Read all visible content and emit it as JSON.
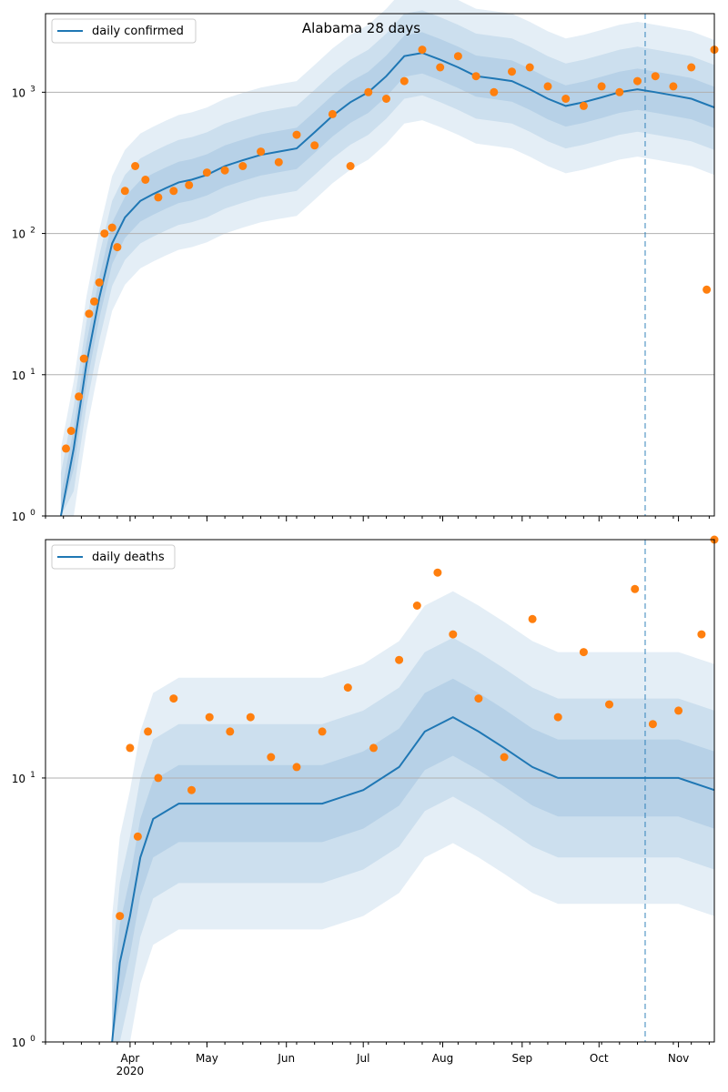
{
  "chart_data": [
    {
      "type": "line",
      "title": "Alabama 28 days",
      "xlabel": "",
      "ylabel": "",
      "yscale": "log",
      "ylim": [
        1,
        3600
      ],
      "xlim": [
        "2020-02-28",
        "2020-11-15"
      ],
      "grid": "y",
      "legend_placement": "top-left",
      "series": [
        {
          "name": "daily confirmed",
          "kind": "line",
          "color": "#1f77b4",
          "x": [
            "2020-03-05",
            "2020-03-10",
            "2020-03-15",
            "2020-03-20",
            "2020-03-25",
            "2020-03-30",
            "2020-04-05",
            "2020-04-10",
            "2020-04-15",
            "2020-04-20",
            "2020-04-25",
            "2020-05-01",
            "2020-05-08",
            "2020-05-15",
            "2020-05-22",
            "2020-05-29",
            "2020-06-05",
            "2020-06-12",
            "2020-06-19",
            "2020-06-26",
            "2020-07-03",
            "2020-07-10",
            "2020-07-17",
            "2020-07-24",
            "2020-07-31",
            "2020-08-07",
            "2020-08-14",
            "2020-08-21",
            "2020-08-28",
            "2020-09-04",
            "2020-09-11",
            "2020-09-18",
            "2020-09-25",
            "2020-10-02",
            "2020-10-09",
            "2020-10-16",
            "2020-10-23",
            "2020-10-30",
            "2020-11-06",
            "2020-11-15"
          ],
          "y": [
            1,
            3,
            12,
            35,
            85,
            130,
            170,
            190,
            210,
            230,
            240,
            260,
            300,
            330,
            360,
            380,
            400,
            520,
            680,
            850,
            1000,
            1300,
            1800,
            1900,
            1700,
            1500,
            1300,
            1250,
            1200,
            1050,
            900,
            800,
            850,
            920,
            1000,
            1050,
            1000,
            950,
            900,
            780
          ]
        },
        {
          "name": "",
          "kind": "scatter",
          "color": "#ff7f0e",
          "x": [
            "2020-03-07",
            "2020-03-09",
            "2020-03-12",
            "2020-03-14",
            "2020-03-16",
            "2020-03-18",
            "2020-03-20",
            "2020-03-22",
            "2020-03-25",
            "2020-03-27",
            "2020-03-30",
            "2020-04-03",
            "2020-04-07",
            "2020-04-12",
            "2020-04-18",
            "2020-04-24",
            "2020-05-01",
            "2020-05-08",
            "2020-05-15",
            "2020-05-22",
            "2020-05-29",
            "2020-06-05",
            "2020-06-12",
            "2020-06-19",
            "2020-06-26",
            "2020-07-03",
            "2020-07-10",
            "2020-07-17",
            "2020-07-24",
            "2020-07-31",
            "2020-08-07",
            "2020-08-14",
            "2020-08-21",
            "2020-08-28",
            "2020-09-04",
            "2020-09-11",
            "2020-09-18",
            "2020-09-25",
            "2020-10-02",
            "2020-10-09",
            "2020-10-16",
            "2020-10-23",
            "2020-10-30",
            "2020-11-06",
            "2020-11-12",
            "2020-11-15"
          ],
          "y": [
            3,
            4,
            7,
            13,
            27,
            33,
            45,
            100,
            110,
            80,
            200,
            300,
            240,
            180,
            200,
            220,
            270,
            280,
            300,
            380,
            320,
            500,
            420,
            700,
            300,
            1000,
            900,
            1200,
            2000,
            1500,
            1800,
            1300,
            1000,
            1400,
            1500,
            1100,
            900,
            800,
            1100,
            1000,
            1200,
            1300,
            1100,
            1500,
            40,
            2000
          ]
        }
      ]
    },
    {
      "type": "line",
      "title": "",
      "xlabel": "",
      "ylabel": "",
      "yscale": "log",
      "ylim": [
        1,
        80
      ],
      "xlim": [
        "2020-02-28",
        "2020-11-15"
      ],
      "grid": "y",
      "legend_placement": "top-left",
      "x_ticks": [
        "Apr\n2020",
        "May",
        "Jun",
        "Jul",
        "Aug",
        "Sep",
        "Oct",
        "Nov"
      ],
      "series": [
        {
          "name": "daily deaths",
          "kind": "line",
          "color": "#1f77b4",
          "x": [
            "2020-03-25",
            "2020-03-28",
            "2020-04-01",
            "2020-04-05",
            "2020-04-10",
            "2020-04-20",
            "2020-05-01",
            "2020-05-15",
            "2020-06-01",
            "2020-06-15",
            "2020-07-01",
            "2020-07-15",
            "2020-07-25",
            "2020-08-05",
            "2020-08-15",
            "2020-08-25",
            "2020-09-05",
            "2020-09-15",
            "2020-10-01",
            "2020-10-15",
            "2020-11-01",
            "2020-11-15"
          ],
          "y": [
            1,
            2,
            3,
            5,
            7,
            8,
            8,
            8,
            8,
            8,
            9,
            11,
            15,
            17,
            15,
            13,
            11,
            10,
            10,
            10,
            10,
            9
          ]
        },
        {
          "name": "",
          "kind": "scatter",
          "color": "#ff7f0e",
          "x": [
            "2020-03-28",
            "2020-04-01",
            "2020-04-04",
            "2020-04-08",
            "2020-04-12",
            "2020-04-18",
            "2020-04-25",
            "2020-05-02",
            "2020-05-10",
            "2020-05-18",
            "2020-05-26",
            "2020-06-05",
            "2020-06-15",
            "2020-06-25",
            "2020-07-05",
            "2020-07-15",
            "2020-07-22",
            "2020-07-30",
            "2020-08-05",
            "2020-08-15",
            "2020-08-25",
            "2020-09-05",
            "2020-09-15",
            "2020-09-25",
            "2020-10-05",
            "2020-10-15",
            "2020-10-22",
            "2020-11-01",
            "2020-11-10",
            "2020-11-15"
          ],
          "y": [
            3,
            13,
            6,
            15,
            10,
            20,
            9,
            17,
            15,
            17,
            12,
            11,
            15,
            22,
            13,
            28,
            45,
            60,
            35,
            20,
            12,
            40,
            17,
            30,
            19,
            52,
            16,
            18,
            35,
            80
          ]
        }
      ]
    }
  ],
  "annotations": {
    "vline_date": "2020-10-19",
    "vline_style": "dashed"
  }
}
